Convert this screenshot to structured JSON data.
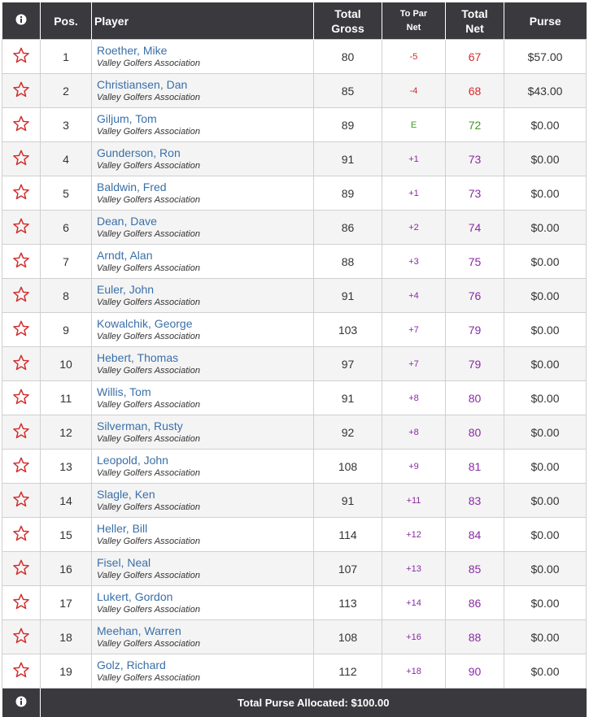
{
  "header": {
    "info": "i",
    "pos": "Pos.",
    "player": "Player",
    "total_gross": "Total Gross",
    "to_par_net": "To Par Net",
    "total_net": "Total Net",
    "purse": "Purse"
  },
  "rows": [
    {
      "pos": "1",
      "name": "Roether, Mike",
      "club": "Valley Golfers Association",
      "gross": "80",
      "topar": "-5",
      "net": "67",
      "purse": "$57.00",
      "tone": "red"
    },
    {
      "pos": "2",
      "name": "Christiansen, Dan",
      "club": "Valley Golfers Association",
      "gross": "85",
      "topar": "-4",
      "net": "68",
      "purse": "$43.00",
      "tone": "red"
    },
    {
      "pos": "3",
      "name": "Giljum, Tom",
      "club": "Valley Golfers Association",
      "gross": "89",
      "topar": "E",
      "net": "72",
      "purse": "$0.00",
      "tone": "green"
    },
    {
      "pos": "4",
      "name": "Gunderson, Ron",
      "club": "Valley Golfers Association",
      "gross": "91",
      "topar": "+1",
      "net": "73",
      "purse": "$0.00",
      "tone": "purple"
    },
    {
      "pos": "5",
      "name": "Baldwin, Fred",
      "club": "Valley Golfers Association",
      "gross": "89",
      "topar": "+1",
      "net": "73",
      "purse": "$0.00",
      "tone": "purple"
    },
    {
      "pos": "6",
      "name": "Dean, Dave",
      "club": "Valley Golfers Association",
      "gross": "86",
      "topar": "+2",
      "net": "74",
      "purse": "$0.00",
      "tone": "purple"
    },
    {
      "pos": "7",
      "name": "Arndt, Alan",
      "club": "Valley Golfers Association",
      "gross": "88",
      "topar": "+3",
      "net": "75",
      "purse": "$0.00",
      "tone": "purple"
    },
    {
      "pos": "8",
      "name": "Euler, John",
      "club": "Valley Golfers Association",
      "gross": "91",
      "topar": "+4",
      "net": "76",
      "purse": "$0.00",
      "tone": "purple"
    },
    {
      "pos": "9",
      "name": "Kowalchik, George",
      "club": "Valley Golfers Association",
      "gross": "103",
      "topar": "+7",
      "net": "79",
      "purse": "$0.00",
      "tone": "purple"
    },
    {
      "pos": "10",
      "name": "Hebert, Thomas",
      "club": "Valley Golfers Association",
      "gross": "97",
      "topar": "+7",
      "net": "79",
      "purse": "$0.00",
      "tone": "purple"
    },
    {
      "pos": "11",
      "name": "Willis, Tom",
      "club": "Valley Golfers Association",
      "gross": "91",
      "topar": "+8",
      "net": "80",
      "purse": "$0.00",
      "tone": "purple"
    },
    {
      "pos": "12",
      "name": "Silverman, Rusty",
      "club": "Valley Golfers Association",
      "gross": "92",
      "topar": "+8",
      "net": "80",
      "purse": "$0.00",
      "tone": "purple"
    },
    {
      "pos": "13",
      "name": "Leopold, John",
      "club": "Valley Golfers Association",
      "gross": "108",
      "topar": "+9",
      "net": "81",
      "purse": "$0.00",
      "tone": "purple"
    },
    {
      "pos": "14",
      "name": "Slagle, Ken",
      "club": "Valley Golfers Association",
      "gross": "91",
      "topar": "+11",
      "net": "83",
      "purse": "$0.00",
      "tone": "purple"
    },
    {
      "pos": "15",
      "name": "Heller, Bill",
      "club": "Valley Golfers Association",
      "gross": "114",
      "topar": "+12",
      "net": "84",
      "purse": "$0.00",
      "tone": "purple"
    },
    {
      "pos": "16",
      "name": "Fisel, Neal",
      "club": "Valley Golfers Association",
      "gross": "107",
      "topar": "+13",
      "net": "85",
      "purse": "$0.00",
      "tone": "purple"
    },
    {
      "pos": "17",
      "name": "Lukert, Gordon",
      "club": "Valley Golfers Association",
      "gross": "113",
      "topar": "+14",
      "net": "86",
      "purse": "$0.00",
      "tone": "purple"
    },
    {
      "pos": "18",
      "name": "Meehan, Warren",
      "club": "Valley Golfers Association",
      "gross": "108",
      "topar": "+16",
      "net": "88",
      "purse": "$0.00",
      "tone": "purple"
    },
    {
      "pos": "19",
      "name": "Golz, Richard",
      "club": "Valley Golfers Association",
      "gross": "112",
      "topar": "+18",
      "net": "90",
      "purse": "$0.00",
      "tone": "purple"
    }
  ],
  "footer": {
    "total_purse": "Total Purse Allocated: $100.00"
  },
  "icons": {
    "info": "info-icon",
    "favorite": "star-outline-icon"
  },
  "colors": {
    "header_bg": "#3a3a3e",
    "player_link": "#3a6fa8",
    "under_par": "#d42b2b",
    "even_par": "#3a9a24",
    "over_par": "#8a2aa6",
    "star": "#d42b2b"
  }
}
